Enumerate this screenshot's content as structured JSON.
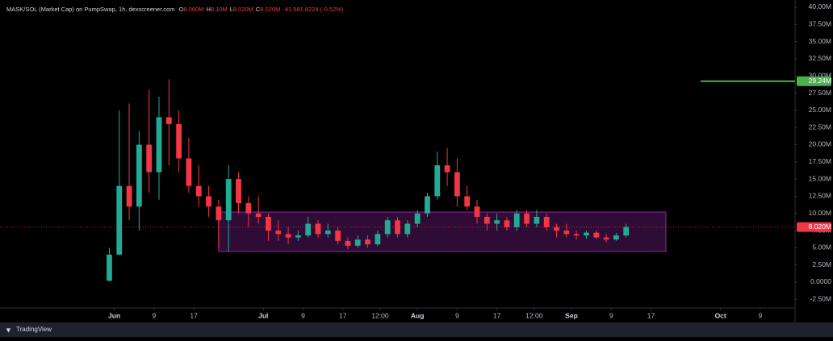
{
  "chart_data": {
    "type": "candlestick",
    "title": "MASK/SOL (Market Cap) on PumpSwap, 1h, dexscreener.com",
    "ohlc_legend": [
      {
        "label": "O",
        "value": "8.060M"
      },
      {
        "label": "H",
        "value": "8.10M"
      },
      {
        "label": "L",
        "value": "8.020M"
      },
      {
        "label": "C",
        "value": "8.020M"
      }
    ],
    "change": "-41,581.8224 (-0.52%)",
    "footer": "TradingView",
    "up_color": "#22ab94",
    "down_color": "#f23645",
    "grid": false,
    "xlim": [
      "05-09",
      "10-16"
    ],
    "ylim": [
      -3.52,
      40.82
    ],
    "yticks": [
      {
        "value": -2.5,
        "label": "-2.50M"
      },
      {
        "value": 0,
        "label": "0.0000"
      },
      {
        "value": 2.5,
        "label": "2.50M"
      },
      {
        "value": 5,
        "label": "5.00M"
      },
      {
        "value": 7.5,
        "label": "7.50M"
      },
      {
        "value": 10,
        "label": "10.00M"
      },
      {
        "value": 12.5,
        "label": "12.50M"
      },
      {
        "value": 15,
        "label": "15.00M"
      },
      {
        "value": 17.5,
        "label": "17.50M"
      },
      {
        "value": 20,
        "label": "20.00M"
      },
      {
        "value": 22.5,
        "label": "22.50M"
      },
      {
        "value": 25,
        "label": "25.00M"
      },
      {
        "value": 27.5,
        "label": "27.50M"
      },
      {
        "value": 30,
        "label": "30.00M"
      },
      {
        "value": 32.5,
        "label": "32.50M"
      },
      {
        "value": 35,
        "label": "35.00M"
      },
      {
        "value": 37.5,
        "label": "37.50M"
      },
      {
        "value": 40,
        "label": "40.00M"
      }
    ],
    "xticks": [
      {
        "value": "06-01",
        "label": "Jun"
      },
      {
        "value": "06-09",
        "label": "9"
      },
      {
        "value": "06-17",
        "label": "17"
      },
      {
        "value": "07-01",
        "label": "Jul"
      },
      {
        "value": "07-09",
        "label": "9"
      },
      {
        "value": "07-17",
        "label": "17"
      },
      {
        "value": "07-24 12:00",
        "label": "12:00"
      },
      {
        "value": "08-01",
        "label": "Aug"
      },
      {
        "value": "08-09",
        "label": "9"
      },
      {
        "value": "08-17",
        "label": "17"
      },
      {
        "value": "08-24 12:00",
        "label": "12:00"
      },
      {
        "value": "09-01",
        "label": "Sep"
      },
      {
        "value": "09-09",
        "label": "9"
      },
      {
        "value": "09-17",
        "label": "17"
      },
      {
        "value": "10-01",
        "label": "Oct"
      },
      {
        "value": "10-09",
        "label": "9"
      }
    ],
    "x": [
      "05-30",
      "06-01",
      "06-03",
      "06-05",
      "06-07",
      "06-09",
      "06-11",
      "06-13",
      "06-15",
      "06-17",
      "06-19",
      "06-21",
      "06-23",
      "06-25",
      "06-27",
      "06-29",
      "07-01",
      "07-03",
      "07-05",
      "07-07",
      "07-09",
      "07-11",
      "07-13",
      "07-15",
      "07-17",
      "07-19",
      "07-21",
      "07-23",
      "07-25",
      "07-27",
      "07-29",
      "07-31",
      "08-02",
      "08-04",
      "08-06",
      "08-08",
      "08-10",
      "08-12",
      "08-14",
      "08-16",
      "08-18",
      "08-20",
      "08-22",
      "08-24",
      "08-26",
      "08-28",
      "08-30",
      "09-01",
      "09-03",
      "09-05",
      "09-07",
      "09-09",
      "09-11"
    ],
    "open": [
      0.2,
      4,
      14,
      11,
      20,
      16,
      24,
      23,
      18,
      14,
      12.5,
      11,
      9,
      15,
      11.5,
      10,
      9.5,
      7.5,
      7,
      6.5,
      6.8,
      8.5,
      7,
      7.5,
      6,
      5.3,
      6.2,
      5.5,
      7,
      9,
      7,
      8.5,
      10,
      12.5,
      17,
      16,
      12.5,
      11,
      9.5,
      8.5,
      9,
      8,
      10,
      8.5,
      9.5,
      8,
      7.5,
      7,
      6.8,
      7.2,
      6.5,
      6.2,
      6.8
    ],
    "high": [
      5,
      25,
      26,
      22,
      28,
      27,
      29.5,
      25,
      21,
      17,
      14,
      12,
      17,
      16,
      12.5,
      12.5,
      10,
      9,
      8,
      7.5,
      9.5,
      9,
      8.5,
      8,
      6.5,
      6.8,
      6.8,
      7.5,
      9.5,
      9.5,
      9,
      10.5,
      13,
      19,
      19.5,
      18,
      14,
      12,
      10,
      10,
      9.5,
      10.5,
      10.5,
      10.5,
      10,
      8.5,
      8.5,
      7.5,
      7.5,
      7.5,
      7,
      7.2,
      8.5
    ],
    "low": [
      0.1,
      4,
      9,
      7.5,
      13,
      12,
      17,
      16,
      13,
      11,
      9.5,
      5,
      4.5,
      10,
      8,
      8.5,
      6,
      6,
      5.5,
      6,
      6.5,
      6.5,
      6.5,
      5.5,
      4.8,
      5,
      5,
      5.2,
      6.5,
      6.5,
      6.5,
      8,
      9.5,
      12,
      14,
      11,
      10.5,
      8.5,
      7.5,
      7.5,
      7.5,
      7.5,
      8,
      8,
      7.5,
      6.5,
      6.5,
      6.2,
      6.3,
      6.3,
      5.8,
      6,
      6.5
    ],
    "close": [
      4,
      14,
      11,
      20,
      16,
      24,
      23,
      18,
      14,
      12.5,
      11,
      9,
      15,
      11.5,
      10,
      9.5,
      7.5,
      7,
      6.5,
      6.8,
      8.5,
      7,
      7.5,
      6,
      5.3,
      6.2,
      5.5,
      7,
      9,
      7,
      8.5,
      10,
      12.5,
      17,
      16,
      12.5,
      11,
      9.5,
      8.5,
      9,
      8,
      10,
      8.5,
      9.5,
      8,
      7.5,
      7,
      6.8,
      7.2,
      6.5,
      6.2,
      6.8,
      8.02
    ],
    "price_line": {
      "value": 8.02,
      "label": "8.020M",
      "color": "#f23645"
    },
    "level_line": {
      "value": 29.24,
      "label": "29.24M",
      "start": "09-27",
      "color": "#4caf50"
    },
    "range_box": {
      "x": [
        "06-22",
        "09-20"
      ],
      "y": [
        4.46,
        10.2
      ],
      "color": "#9c27b0"
    }
  }
}
